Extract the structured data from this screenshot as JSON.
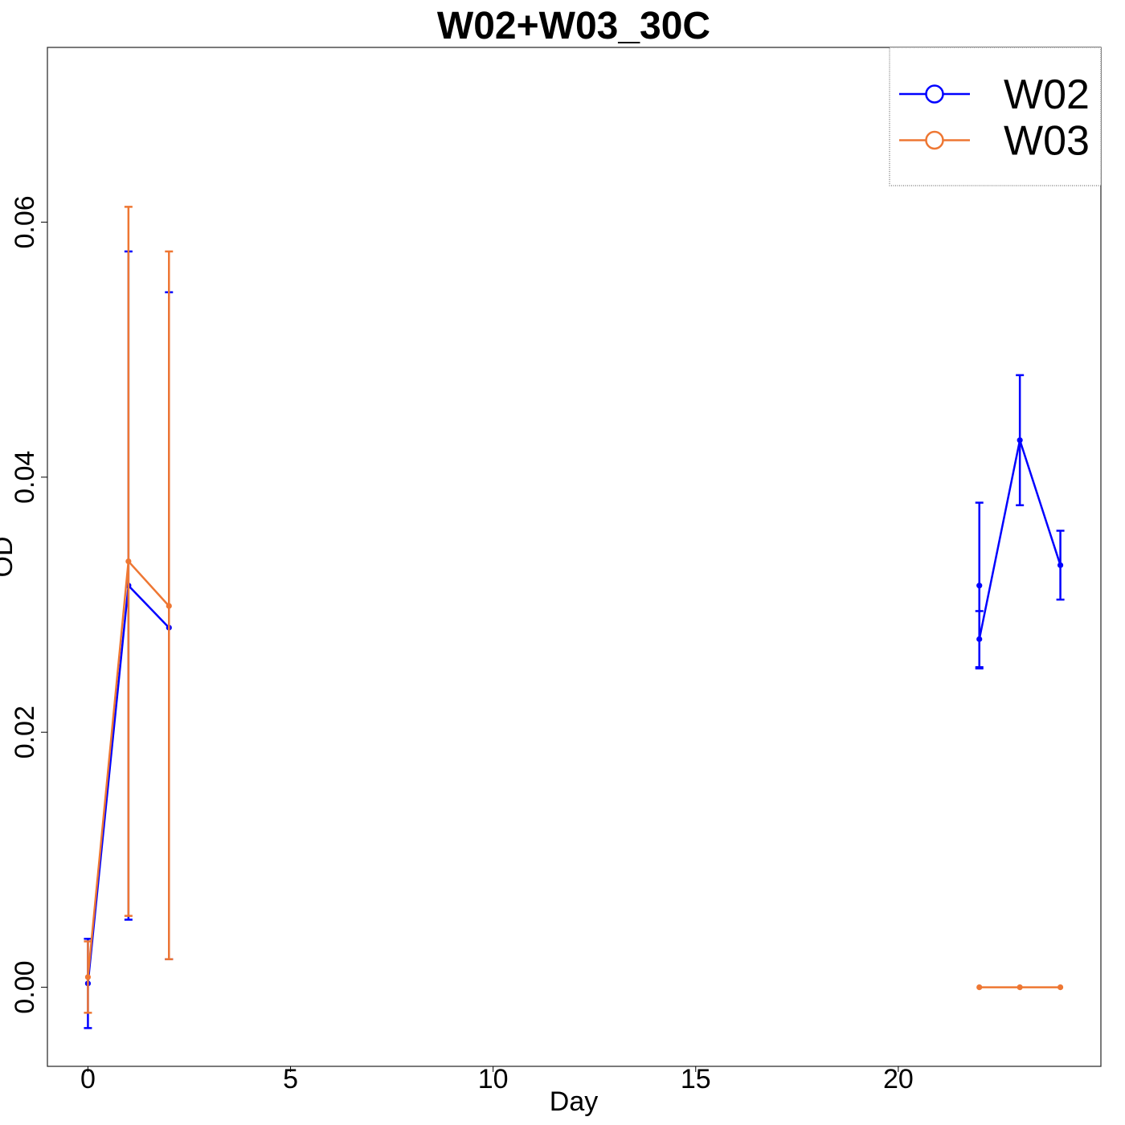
{
  "chart_data": {
    "type": "line",
    "title": "W02+W03_30C",
    "xlabel": "Day",
    "ylabel": "OD",
    "xlim": [
      -1,
      25
    ],
    "ylim": [
      -0.0062,
      0.0737
    ],
    "x_ticks": [
      0,
      5,
      10,
      15,
      20
    ],
    "y_ticks": [
      0.0,
      0.02,
      0.04,
      0.06
    ],
    "y_tick_labels": [
      "0.00",
      "0.02",
      "0.04",
      "0.06"
    ],
    "grid": false,
    "legend_position": "top-right",
    "series": [
      {
        "name": "W02",
        "color": "#0000ff",
        "segments": [
          [
            {
              "x": 0,
              "y": 0.0003,
              "lo": -0.0032,
              "hi": 0.0038
            },
            {
              "x": 1,
              "y": 0.0315,
              "lo": 0.0053,
              "hi": 0.0577
            },
            {
              "x": 2,
              "y": 0.0282,
              "lo": 0.0022,
              "hi": 0.0545
            }
          ],
          [
            {
              "x": 22,
              "y": 0.0315,
              "lo": 0.025,
              "hi": 0.038
            },
            {
              "x": 22,
              "y": 0.0273,
              "lo": 0.0251,
              "hi": 0.0295
            },
            {
              "x": 23,
              "y": 0.0429,
              "lo": 0.0378,
              "hi": 0.048
            },
            {
              "x": 24,
              "y": 0.0331,
              "lo": 0.0304,
              "hi": 0.0358
            }
          ]
        ]
      },
      {
        "name": "W03",
        "color": "#ee7733",
        "segments": [
          [
            {
              "x": 0,
              "y": 0.0008,
              "lo": -0.002,
              "hi": 0.0036
            },
            {
              "x": 1,
              "y": 0.0334,
              "lo": 0.0056,
              "hi": 0.0612
            },
            {
              "x": 2,
              "y": 0.0299,
              "lo": 0.0022,
              "hi": 0.0577
            }
          ],
          [
            {
              "x": 22,
              "y": 0.0,
              "lo": 0.0,
              "hi": 0.0
            },
            {
              "x": 23,
              "y": 0.0,
              "lo": 0.0,
              "hi": 0.0
            },
            {
              "x": 24,
              "y": 0.0,
              "lo": 0.0,
              "hi": 0.0
            }
          ]
        ]
      }
    ]
  }
}
